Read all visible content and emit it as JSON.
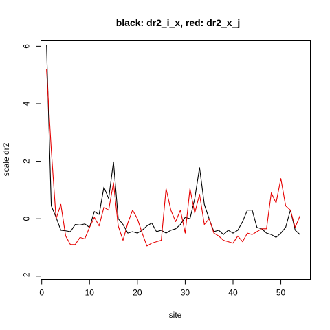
{
  "chart_data": {
    "type": "line",
    "title": "black: dr2_i_x, red: dr2_x_j",
    "xlabel": "site",
    "ylabel": "scale dr2",
    "xlim": [
      -0.1,
      56.1
    ],
    "ylim": [
      -2.1,
      6.2
    ],
    "xticks": [
      0,
      10,
      20,
      30,
      40,
      50
    ],
    "xtick_labels": [
      "0",
      "10",
      "20",
      "30",
      "40",
      "50"
    ],
    "yticks": [
      -2,
      0,
      2,
      4,
      6
    ],
    "ytick_labels": [
      "-2",
      "0",
      "2",
      "4",
      "6"
    ],
    "grid": false,
    "legend": "none",
    "x": [
      1,
      2,
      3,
      4,
      5,
      6,
      7,
      8,
      9,
      10,
      11,
      12,
      13,
      14,
      15,
      16,
      17,
      18,
      19,
      20,
      21,
      22,
      23,
      24,
      25,
      26,
      27,
      28,
      29,
      30,
      31,
      32,
      33,
      34,
      35,
      36,
      37,
      38,
      39,
      40,
      41,
      42,
      43,
      44,
      45,
      46,
      47,
      48,
      49,
      50,
      51,
      52,
      53,
      54
    ],
    "series": [
      {
        "color": "#000000",
        "values": [
          6.05,
          0.45,
          0.05,
          -0.4,
          -0.42,
          -0.45,
          -0.2,
          -0.22,
          -0.18,
          -0.3,
          0.25,
          0.15,
          1.1,
          0.7,
          1.98,
          0.0,
          -0.2,
          -0.5,
          -0.45,
          -0.5,
          -0.4,
          -0.25,
          -0.15,
          -0.45,
          -0.4,
          -0.5,
          -0.4,
          -0.35,
          -0.2,
          0.05,
          0.0,
          0.7,
          1.78,
          0.5,
          0.0,
          -0.45,
          -0.4,
          -0.55,
          -0.4,
          -0.5,
          -0.4,
          -0.1,
          0.3,
          0.3,
          -0.3,
          -0.35,
          -0.5,
          -0.55,
          -0.65,
          -0.5,
          -0.3,
          0.3,
          -0.4,
          -0.55
        ]
      },
      {
        "color": "#e60000",
        "values": [
          5.2,
          2.4,
          0.0,
          0.5,
          -0.6,
          -0.9,
          -0.9,
          -0.65,
          -0.7,
          -0.3,
          0.05,
          -0.25,
          0.4,
          0.3,
          1.25,
          -0.25,
          -0.75,
          -0.15,
          0.3,
          0.0,
          -0.5,
          -0.95,
          -0.85,
          -0.8,
          -0.75,
          1.05,
          0.3,
          -0.1,
          0.3,
          -0.5,
          1.05,
          0.2,
          0.85,
          -0.2,
          0.0,
          -0.5,
          -0.6,
          -0.75,
          -0.8,
          -0.85,
          -0.6,
          -0.8,
          -0.5,
          -0.55,
          -0.45,
          -0.35,
          -0.35,
          0.9,
          0.55,
          1.4,
          0.45,
          0.3,
          -0.3,
          0.1
        ]
      }
    ]
  }
}
